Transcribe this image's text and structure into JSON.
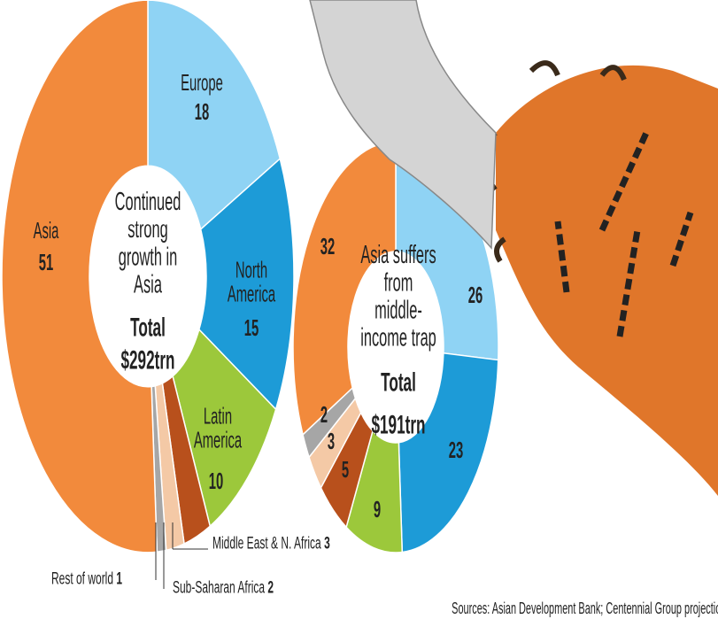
{
  "chart_data": [
    {
      "type": "donut",
      "title": "Continued strong growth in Asia",
      "total_label": "Total",
      "total": "$292trn",
      "categories": [
        "Europe",
        "North America",
        "Latin America",
        "Middle East & N. Africa",
        "Sub-Saharan Africa",
        "Rest of world",
        "Asia"
      ],
      "values": [
        18,
        15,
        10,
        3,
        2,
        1,
        51
      ],
      "colors": [
        "#8fd3f4",
        "#1d9bd7",
        "#9cc83b",
        "#b8501c",
        "#f4c9a6",
        "#a6a6a6",
        "#f28a3c"
      ]
    },
    {
      "type": "donut",
      "title": "Asia suffers from middle-income trap",
      "total_label": "Total",
      "total": "$191trn",
      "categories": [
        null,
        null,
        null,
        null,
        null,
        null,
        null
      ],
      "values": [
        26,
        23,
        9,
        5,
        3,
        2,
        32
      ],
      "colors": [
        "#8fd3f4",
        "#1d9bd7",
        "#9cc83b",
        "#b8501c",
        "#f4c9a6",
        "#a6a6a6",
        "#f28a3c"
      ]
    }
  ],
  "source": "Sources: Asian Development Bank; Centennial Group projections"
}
